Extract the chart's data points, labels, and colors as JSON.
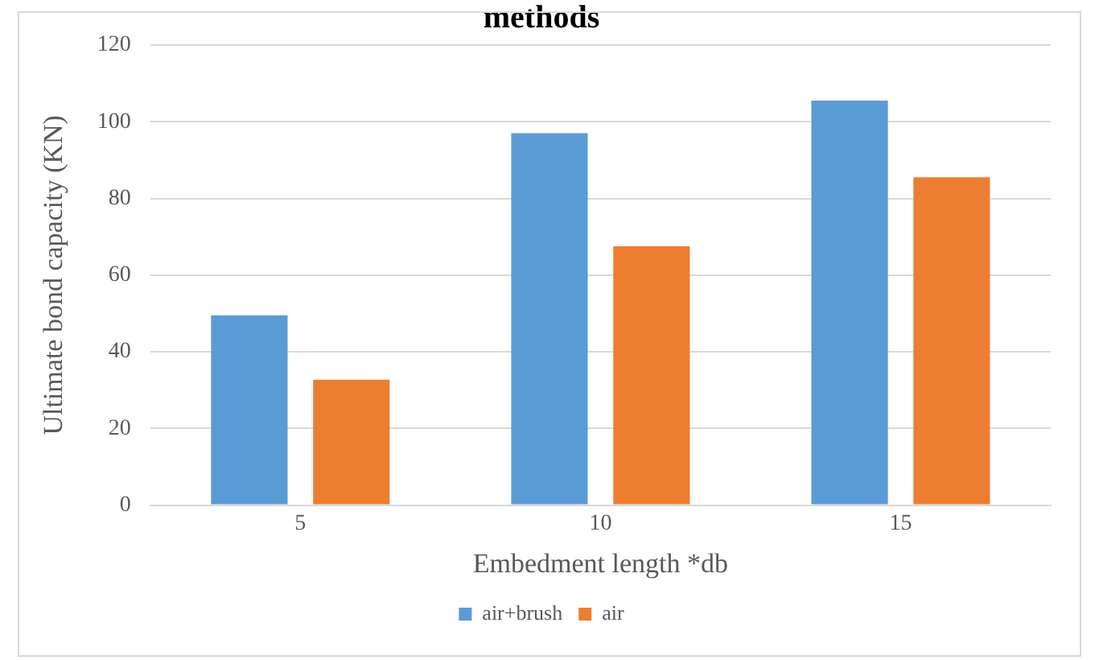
{
  "chart_data": {
    "type": "bar",
    "title": "methods",
    "xlabel": "Embedment length *db",
    "ylabel": "Ultimate bond capacity (KN)",
    "categories": [
      "5",
      "10",
      "15"
    ],
    "series": [
      {
        "name": "air+brush",
        "color": "#5b9bd5",
        "values": [
          49.5,
          97,
          105.5
        ]
      },
      {
        "name": "air",
        "color": "#ed7d31",
        "values": [
          32.7,
          67.5,
          85.5
        ]
      }
    ],
    "ylim": [
      0,
      120
    ],
    "yticks": [
      0,
      20,
      40,
      60,
      80,
      100,
      120
    ],
    "grid": "y",
    "legend": "bottom"
  }
}
